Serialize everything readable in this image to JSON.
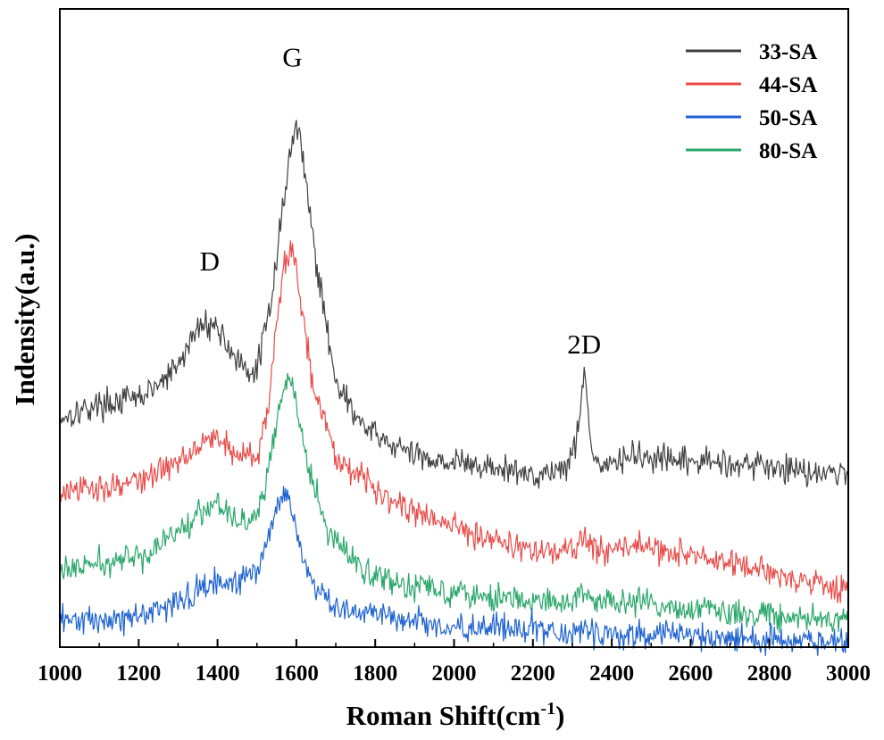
{
  "chart_data": {
    "type": "line",
    "title": "",
    "xlabel": "Roman Shift(cm",
    "xlabel_sup": "-1",
    "xlabel_close": ")",
    "ylabel": "Indensity(a.u.)",
    "xlim": [
      1000,
      3000
    ],
    "ylim": [
      0,
      100
    ],
    "x_ticks": [
      1000,
      1200,
      1400,
      1600,
      1800,
      2000,
      2200,
      2400,
      2600,
      2800,
      3000
    ],
    "x_tick_labels": [
      "1000",
      "1200",
      "1400",
      "1600",
      "1800",
      "2000",
      "2200",
      "2400",
      "2600",
      "2800",
      "3000"
    ],
    "y_ticks_shown": false,
    "grid": false,
    "legend_position": "top-right",
    "annotations": [
      {
        "text": "D",
        "x": 1380,
        "y": 59
      },
      {
        "text": "G",
        "x": 1590,
        "y": 91
      },
      {
        "text": "2D",
        "x": 2330,
        "y": 46
      }
    ],
    "series": [
      {
        "name": "33-SA",
        "color": "#404040",
        "x": [
          1000,
          1100,
          1200,
          1250,
          1300,
          1340,
          1370,
          1400,
          1440,
          1480,
          1500,
          1530,
          1560,
          1580,
          1600,
          1620,
          1650,
          1700,
          1750,
          1800,
          1900,
          2000,
          2100,
          2200,
          2280,
          2310,
          2330,
          2350,
          2380,
          2450,
          2550,
          2700,
          2850,
          3000
        ],
        "y": [
          36,
          38,
          39,
          41,
          44,
          49,
          51,
          50,
          46,
          42,
          44,
          52,
          66,
          76,
          82,
          76,
          60,
          42,
          36,
          33,
          30,
          29,
          28,
          27,
          28,
          32,
          44,
          30,
          28,
          30,
          29,
          29,
          28,
          27
        ]
      },
      {
        "name": "44-SA",
        "color": "#e84b48",
        "x": [
          1000,
          1100,
          1200,
          1300,
          1350,
          1400,
          1450,
          1500,
          1530,
          1550,
          1570,
          1590,
          1610,
          1640,
          1700,
          1800,
          1900,
          2000,
          2100,
          2200,
          2300,
          2330,
          2360,
          2450,
          2550,
          2700,
          2850,
          3000
        ],
        "y": [
          24,
          25,
          26,
          29,
          32,
          33,
          30,
          30,
          38,
          50,
          60,
          63,
          55,
          42,
          30,
          25,
          21,
          19,
          17,
          15,
          15,
          17,
          15,
          16,
          15,
          13,
          11,
          9
        ]
      },
      {
        "name": "50-SA",
        "color": "#1f63d0",
        "x": [
          1000,
          1100,
          1200,
          1300,
          1350,
          1400,
          1450,
          1500,
          1530,
          1550,
          1570,
          1590,
          1610,
          1640,
          1700,
          1800,
          1900,
          2000,
          2100,
          2200,
          2300,
          2330,
          2360,
          2450,
          2600,
          2800,
          3000
        ],
        "y": [
          4,
          4,
          5,
          7,
          9,
          10,
          10,
          12,
          17,
          22,
          24,
          22,
          16,
          10,
          6,
          5,
          4,
          3,
          3,
          3,
          2,
          3,
          2,
          2,
          2,
          1,
          1
        ]
      },
      {
        "name": "80-SA",
        "color": "#2aa76a",
        "x": [
          1000,
          1100,
          1200,
          1300,
          1350,
          1400,
          1450,
          1500,
          1530,
          1550,
          1570,
          1585,
          1600,
          1630,
          1680,
          1750,
          1850,
          2000,
          2100,
          2200,
          2300,
          2330,
          2360,
          2450,
          2600,
          2800,
          3000
        ],
        "y": [
          12,
          13,
          14,
          18,
          21,
          23,
          20,
          20,
          28,
          35,
          41,
          42,
          38,
          28,
          18,
          13,
          10,
          9,
          8,
          7,
          7,
          9,
          7,
          7,
          6,
          5,
          4
        ]
      }
    ]
  }
}
